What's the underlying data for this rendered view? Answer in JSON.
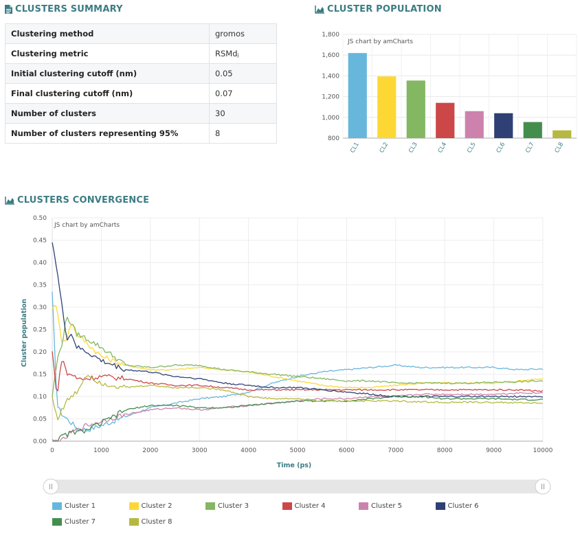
{
  "summary": {
    "title": "CLUSTERS SUMMARY",
    "rows": [
      {
        "label": "Clustering method",
        "value": "gromos"
      },
      {
        "label": "Clustering metric",
        "value": "RSMdⱼ"
      },
      {
        "label": "Initial clustering cutoff (nm)",
        "value": "0.05"
      },
      {
        "label": "Final clustering cutoff (nm)",
        "value": "0.07"
      },
      {
        "label": "Number of clusters",
        "value": "30"
      },
      {
        "label": "Number of clusters representing 95%",
        "value": "8"
      }
    ]
  },
  "population": {
    "title": "CLUSTER POPULATION",
    "credit": "JS chart by amCharts"
  },
  "convergence": {
    "title": "CLUSTERS CONVERGENCE",
    "credit": "JS chart by amCharts"
  },
  "icons": {
    "summary": "document-icon",
    "population": "area-chart-icon",
    "convergence": "area-chart-icon"
  },
  "chart_data": [
    {
      "type": "bar",
      "categories": [
        "CL1",
        "CL2",
        "CL3",
        "CL4",
        "CL5",
        "CL6",
        "CL7",
        "CL8"
      ],
      "values": [
        1620,
        1395,
        1355,
        1140,
        1060,
        1040,
        955,
        875
      ],
      "colors": [
        "#67b7dc",
        "#fdd835",
        "#84b761",
        "#cc4748",
        "#cd82ad",
        "#2f4074",
        "#448e4d",
        "#b7b83f"
      ],
      "ylim": [
        800,
        1800
      ],
      "yticks": [
        800,
        1000,
        1200,
        1400,
        1600,
        1800
      ],
      "title": "",
      "xlabel": "",
      "ylabel": "",
      "grid": true
    },
    {
      "type": "line",
      "xlabel": "Time (ps)",
      "ylabel": "Cluster population",
      "xlim": [
        0,
        10000
      ],
      "ylim": [
        0,
        0.5
      ],
      "xticks": [
        0,
        1000,
        2000,
        3000,
        4000,
        5000,
        6000,
        7000,
        8000,
        9000,
        10000
      ],
      "yticks": [
        0,
        0.05,
        0.1,
        0.15,
        0.2,
        0.25,
        0.3,
        0.35,
        0.4,
        0.45,
        0.5
      ],
      "x": [
        0,
        100,
        200,
        300,
        400,
        500,
        700,
        1000,
        1500,
        2000,
        2500,
        3000,
        3500,
        4000,
        4500,
        5000,
        5500,
        6000,
        6500,
        7000,
        7500,
        8000,
        8500,
        9000,
        9500,
        10000
      ],
      "series": [
        {
          "name": "Cluster 1",
          "color": "#67b7dc",
          "values": [
            0.33,
            0.08,
            0.06,
            0.05,
            0.04,
            0.03,
            0.025,
            0.035,
            0.055,
            0.075,
            0.085,
            0.095,
            0.1,
            0.11,
            0.13,
            0.145,
            0.155,
            0.16,
            0.165,
            0.17,
            0.165,
            0.165,
            0.165,
            0.165,
            0.16,
            0.162
          ]
        },
        {
          "name": "Cluster 2",
          "color": "#fdd835",
          "values": [
            0.3,
            0.3,
            0.22,
            0.23,
            0.27,
            0.24,
            0.22,
            0.19,
            0.17,
            0.16,
            0.16,
            0.165,
            0.16,
            0.155,
            0.145,
            0.135,
            0.125,
            0.12,
            0.12,
            0.125,
            0.13,
            0.13,
            0.13,
            0.13,
            0.135,
            0.14
          ]
        },
        {
          "name": "Cluster 3",
          "color": "#84b761",
          "values": [
            0.1,
            0.18,
            0.22,
            0.28,
            0.26,
            0.24,
            0.23,
            0.21,
            0.17,
            0.165,
            0.17,
            0.17,
            0.16,
            0.155,
            0.15,
            0.145,
            0.14,
            0.135,
            0.135,
            0.13,
            0.13,
            0.13,
            0.13,
            0.132,
            0.133,
            0.135
          ]
        },
        {
          "name": "Cluster 4",
          "color": "#cc4748",
          "values": [
            0.2,
            0.1,
            0.19,
            0.15,
            0.15,
            0.14,
            0.14,
            0.145,
            0.14,
            0.13,
            0.125,
            0.125,
            0.12,
            0.115,
            0.115,
            0.115,
            0.115,
            0.115,
            0.115,
            0.115,
            0.115,
            0.115,
            0.115,
            0.115,
            0.115,
            0.112
          ]
        },
        {
          "name": "Cluster 5",
          "color": "#cd82ad",
          "values": [
            0.0,
            0.0,
            0.0,
            0.01,
            0.02,
            0.025,
            0.035,
            0.045,
            0.06,
            0.07,
            0.075,
            0.07,
            0.075,
            0.08,
            0.085,
            0.09,
            0.095,
            0.095,
            0.1,
            0.1,
            0.105,
            0.105,
            0.105,
            0.105,
            0.108,
            0.108
          ]
        },
        {
          "name": "Cluster 6",
          "color": "#2f4074",
          "values": [
            0.45,
            0.38,
            0.3,
            0.23,
            0.24,
            0.21,
            0.2,
            0.18,
            0.16,
            0.155,
            0.145,
            0.14,
            0.13,
            0.125,
            0.12,
            0.12,
            0.115,
            0.11,
            0.105,
            0.1,
            0.1,
            0.1,
            0.1,
            0.1,
            0.1,
            0.1
          ]
        },
        {
          "name": "Cluster 7",
          "color": "#448e4d",
          "values": [
            0.0,
            0.0,
            0.01,
            0.015,
            0.02,
            0.02,
            0.025,
            0.04,
            0.07,
            0.08,
            0.08,
            0.075,
            0.075,
            0.08,
            0.085,
            0.09,
            0.09,
            0.09,
            0.095,
            0.1,
            0.1,
            0.095,
            0.095,
            0.095,
            0.093,
            0.093
          ]
        },
        {
          "name": "Cluster 8",
          "color": "#b7b83f",
          "values": [
            0.1,
            0.05,
            0.07,
            0.09,
            0.1,
            0.11,
            0.15,
            0.13,
            0.12,
            0.125,
            0.12,
            0.12,
            0.115,
            0.1,
            0.095,
            0.095,
            0.09,
            0.09,
            0.09,
            0.09,
            0.088,
            0.087,
            0.087,
            0.087,
            0.086,
            0.085
          ]
        }
      ]
    }
  ]
}
